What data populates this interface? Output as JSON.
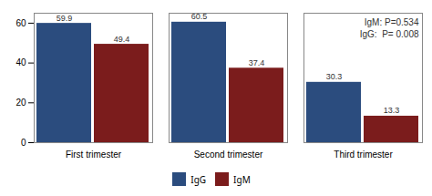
{
  "chart_data": {
    "type": "bar",
    "categories": [
      "First trimester",
      "Second trimester",
      "Third trimester"
    ],
    "series": [
      {
        "name": "IgG",
        "color": "#2B4C7E",
        "values": [
          59.9,
          60.5,
          30.3
        ]
      },
      {
        "name": "IgM",
        "color": "#7B1C1C",
        "values": [
          49.4,
          37.4,
          13.3
        ]
      }
    ],
    "ylim": [
      0,
      65
    ],
    "yticks": [
      0,
      20,
      40,
      60
    ],
    "annotation": "IgM: P=0.534\nIgG:  P= 0.008",
    "data_labels": true,
    "grid": false,
    "legend": "bottom"
  }
}
